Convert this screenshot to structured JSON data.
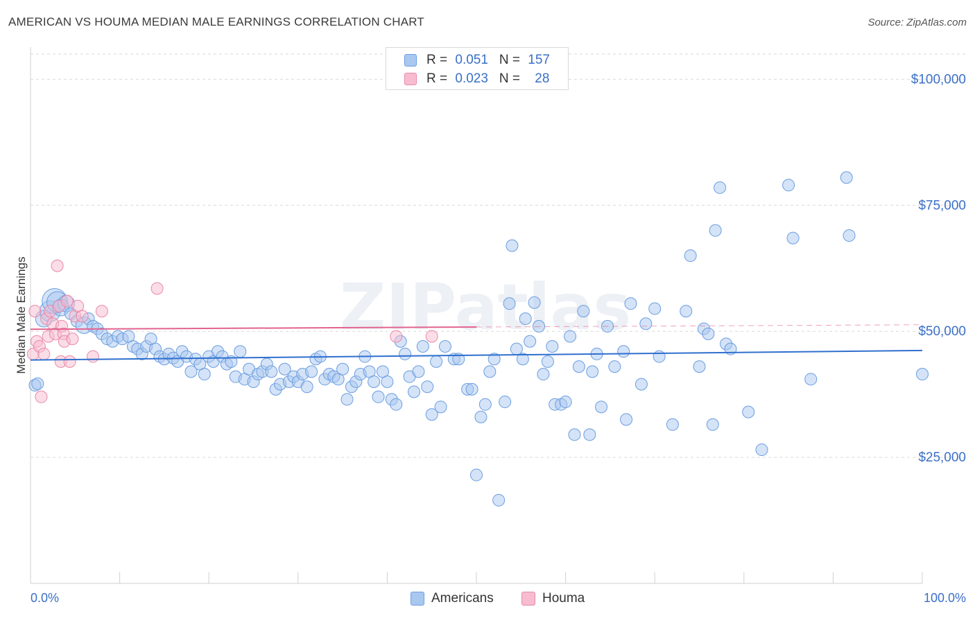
{
  "title": "AMERICAN VS HOUMA MEDIAN MALE EARNINGS CORRELATION CHART",
  "source": "Source: ZipAtlas.com",
  "watermark": "ZIPatlas",
  "colors": {
    "americans_fill": "#a9c8f0",
    "americans_stroke": "#6a9de0",
    "americans_line": "#2f6fce",
    "houma_fill": "#f7bcd0",
    "houma_stroke": "#e889a8",
    "houma_line": "#e2628e",
    "axis_label": "#3a6fc7",
    "grid": "#d9d9d9"
  },
  "legend": {
    "rows": [
      {
        "r_label": "R = ",
        "r_value": "0.051",
        "n_label": "N = ",
        "n_value": "157"
      },
      {
        "r_label": "R = ",
        "r_value": "0.023",
        "n_label": "N = ",
        "n_value": "28"
      }
    ]
  },
  "bottom_legend": {
    "americans": "Americans",
    "houma": "Houma"
  },
  "chart_data": {
    "type": "scatter",
    "title": "AMERICAN VS HOUMA MEDIAN MALE EARNINGS CORRELATION CHART",
    "xlabel": "",
    "ylabel": "Median Male Earnings",
    "xlim": [
      0,
      100
    ],
    "ylim": [
      0,
      105000
    ],
    "x_tick_labels": {
      "left": "0.0%",
      "right": "100.0%"
    },
    "y_ticks": [
      {
        "value": 25000,
        "label": "$25,000"
      },
      {
        "value": 50000,
        "label": "$50,000"
      },
      {
        "value": 75000,
        "label": "$75,000"
      },
      {
        "value": 100000,
        "label": "$100,000"
      }
    ],
    "series": [
      {
        "name": "Americans",
        "r": 0.051,
        "n": 157,
        "trend": {
          "x0": 0,
          "y0": 44300,
          "x1": 100,
          "y1": 46200,
          "dashed_from": null
        },
        "points": [
          [
            0.5,
            39300,
            1
          ],
          [
            0.8,
            39600,
            1
          ],
          [
            1.5,
            52500,
            2
          ],
          [
            2.2,
            54000,
            3
          ],
          [
            2.7,
            56000,
            4
          ],
          [
            3.0,
            55800,
            3
          ],
          [
            3.4,
            54700,
            2
          ],
          [
            4.0,
            55500,
            2
          ],
          [
            4.5,
            53500,
            1
          ],
          [
            5.2,
            52000,
            1
          ],
          [
            6.0,
            51200,
            2
          ],
          [
            6.5,
            52500,
            1
          ],
          [
            7.0,
            51000,
            1
          ],
          [
            7.5,
            50500,
            1
          ],
          [
            8.0,
            49500,
            1
          ],
          [
            8.6,
            48500,
            1
          ],
          [
            9.2,
            48000,
            1
          ],
          [
            9.8,
            49000,
            1
          ],
          [
            10.3,
            48500,
            1
          ],
          [
            11.0,
            49000,
            1
          ],
          [
            11.5,
            47000,
            1
          ],
          [
            12.0,
            46500,
            1
          ],
          [
            12.5,
            45500,
            1
          ],
          [
            13.0,
            47000,
            1
          ],
          [
            13.5,
            48500,
            1
          ],
          [
            14.0,
            46500,
            1
          ],
          [
            14.5,
            45000,
            1
          ],
          [
            15.0,
            44500,
            1
          ],
          [
            15.5,
            45500,
            1
          ],
          [
            16.0,
            44700,
            1
          ],
          [
            16.5,
            44000,
            1
          ],
          [
            17.0,
            46000,
            1
          ],
          [
            17.5,
            45000,
            1
          ],
          [
            18.0,
            42000,
            1
          ],
          [
            18.5,
            44500,
            1
          ],
          [
            19.0,
            43500,
            1
          ],
          [
            19.5,
            41500,
            1
          ],
          [
            20.0,
            45000,
            1
          ],
          [
            20.5,
            44000,
            1
          ],
          [
            21.0,
            46000,
            1
          ],
          [
            21.5,
            45000,
            1
          ],
          [
            22.0,
            43500,
            1
          ],
          [
            22.5,
            44000,
            1
          ],
          [
            23.0,
            41000,
            1
          ],
          [
            23.5,
            46000,
            1
          ],
          [
            24.0,
            40500,
            1
          ],
          [
            24.5,
            42500,
            1
          ],
          [
            25.0,
            40000,
            1
          ],
          [
            25.5,
            41500,
            1
          ],
          [
            26.0,
            42000,
            1
          ],
          [
            26.5,
            43500,
            1
          ],
          [
            27.0,
            42000,
            1
          ],
          [
            27.5,
            38500,
            1
          ],
          [
            28.0,
            39500,
            1
          ],
          [
            28.5,
            42500,
            1
          ],
          [
            29.0,
            40000,
            1
          ],
          [
            29.5,
            41000,
            1
          ],
          [
            30.0,
            40000,
            1
          ],
          [
            30.5,
            41500,
            1
          ],
          [
            31.0,
            39000,
            1
          ],
          [
            31.5,
            42000,
            1
          ],
          [
            32.0,
            44500,
            1
          ],
          [
            32.5,
            45000,
            1
          ],
          [
            33.0,
            40500,
            1
          ],
          [
            33.5,
            41500,
            1
          ],
          [
            34.0,
            41000,
            1
          ],
          [
            34.5,
            40500,
            1
          ],
          [
            35.0,
            42500,
            1
          ],
          [
            35.5,
            36500,
            1
          ],
          [
            36.0,
            39000,
            1
          ],
          [
            36.5,
            40000,
            1
          ],
          [
            37.0,
            41500,
            1
          ],
          [
            37.5,
            45000,
            1
          ],
          [
            38.0,
            42000,
            1
          ],
          [
            38.5,
            40000,
            1
          ],
          [
            39.0,
            37000,
            1
          ],
          [
            39.5,
            42000,
            1
          ],
          [
            40.0,
            40000,
            1
          ],
          [
            40.5,
            36500,
            1
          ],
          [
            41.0,
            35500,
            1
          ],
          [
            41.5,
            48000,
            1
          ],
          [
            42.0,
            45500,
            1
          ],
          [
            42.5,
            41000,
            1
          ],
          [
            43.0,
            38000,
            1
          ],
          [
            43.5,
            42000,
            1
          ],
          [
            44.0,
            47000,
            1
          ],
          [
            44.5,
            39000,
            1
          ],
          [
            45.0,
            33500,
            1
          ],
          [
            45.5,
            44000,
            1
          ],
          [
            46.0,
            35000,
            1
          ],
          [
            46.5,
            47000,
            1
          ],
          [
            47.5,
            44500,
            1
          ],
          [
            48.0,
            44500,
            1
          ],
          [
            49.0,
            38500,
            1
          ],
          [
            49.5,
            38500,
            1
          ],
          [
            50.0,
            21500,
            1
          ],
          [
            50.5,
            33000,
            1
          ],
          [
            51.0,
            35500,
            1
          ],
          [
            51.5,
            42000,
            1
          ],
          [
            52.0,
            44500,
            1
          ],
          [
            52.5,
            16500,
            1
          ],
          [
            53.2,
            36000,
            1
          ],
          [
            53.7,
            55500,
            1
          ],
          [
            54.0,
            67000,
            1
          ],
          [
            54.5,
            46500,
            1
          ],
          [
            55.2,
            44500,
            1
          ],
          [
            55.5,
            52500,
            1
          ],
          [
            56.0,
            48000,
            1
          ],
          [
            56.5,
            55700,
            1
          ],
          [
            57.0,
            51000,
            1
          ],
          [
            57.5,
            41500,
            1
          ],
          [
            58.0,
            44000,
            1
          ],
          [
            58.5,
            47000,
            1
          ],
          [
            58.8,
            35500,
            1
          ],
          [
            59.5,
            35500,
            1
          ],
          [
            60.0,
            36000,
            1
          ],
          [
            60.5,
            49000,
            1
          ],
          [
            61.0,
            29500,
            1
          ],
          [
            61.5,
            43000,
            1
          ],
          [
            62.0,
            54000,
            1
          ],
          [
            62.7,
            29500,
            1
          ],
          [
            63.0,
            42000,
            1
          ],
          [
            63.5,
            45500,
            1
          ],
          [
            64.0,
            35000,
            1
          ],
          [
            64.7,
            51000,
            1
          ],
          [
            65.5,
            43000,
            1
          ],
          [
            66.5,
            46000,
            1
          ],
          [
            66.8,
            32500,
            1
          ],
          [
            67.3,
            55500,
            1
          ],
          [
            68.5,
            39500,
            1
          ],
          [
            69.0,
            51500,
            1
          ],
          [
            70.0,
            54500,
            1
          ],
          [
            70.5,
            45000,
            1
          ],
          [
            72.0,
            31500,
            1
          ],
          [
            73.5,
            54000,
            1
          ],
          [
            74.0,
            65000,
            1
          ],
          [
            75.0,
            43000,
            1
          ],
          [
            75.5,
            50500,
            1
          ],
          [
            76.0,
            49500,
            1
          ],
          [
            76.5,
            31500,
            1
          ],
          [
            76.8,
            70000,
            1
          ],
          [
            77.3,
            78500,
            1
          ],
          [
            78.0,
            47500,
            1
          ],
          [
            78.5,
            46500,
            1
          ],
          [
            80.5,
            34000,
            1
          ],
          [
            82.0,
            26500,
            1
          ],
          [
            85.0,
            79000,
            1
          ],
          [
            85.5,
            68500,
            1
          ],
          [
            87.5,
            40500,
            1
          ],
          [
            91.5,
            80500,
            1
          ],
          [
            91.8,
            69000,
            1
          ],
          [
            100,
            41500,
            1
          ]
        ]
      },
      {
        "name": "Houma",
        "r": 0.023,
        "n": 28,
        "trend": {
          "x0": 0,
          "y0": 50400,
          "x1": 100,
          "y1": 51300,
          "dashed_from": 50
        },
        "points": [
          [
            0.3,
            45500,
            1
          ],
          [
            0.5,
            54000,
            1
          ],
          [
            0.7,
            48000,
            1
          ],
          [
            1.0,
            47000,
            1
          ],
          [
            1.2,
            37000,
            1
          ],
          [
            1.5,
            45500,
            1
          ],
          [
            1.8,
            52500,
            1
          ],
          [
            2.0,
            49000,
            1
          ],
          [
            2.2,
            54000,
            1
          ],
          [
            2.5,
            51500,
            1
          ],
          [
            2.8,
            49500,
            1
          ],
          [
            3.0,
            63000,
            1
          ],
          [
            3.2,
            55000,
            1
          ],
          [
            3.4,
            44000,
            1
          ],
          [
            3.5,
            51000,
            1
          ],
          [
            3.7,
            49500,
            1
          ],
          [
            3.8,
            48000,
            1
          ],
          [
            4.1,
            56000,
            1
          ],
          [
            4.4,
            44000,
            1
          ],
          [
            4.7,
            48500,
            1
          ],
          [
            5.0,
            53000,
            1
          ],
          [
            5.3,
            55000,
            1
          ],
          [
            5.8,
            53000,
            1
          ],
          [
            7.0,
            45000,
            1
          ],
          [
            8.0,
            54000,
            1
          ],
          [
            14.2,
            58500,
            1
          ],
          [
            41.0,
            49000,
            1
          ],
          [
            45.0,
            49000,
            1
          ]
        ]
      }
    ]
  }
}
